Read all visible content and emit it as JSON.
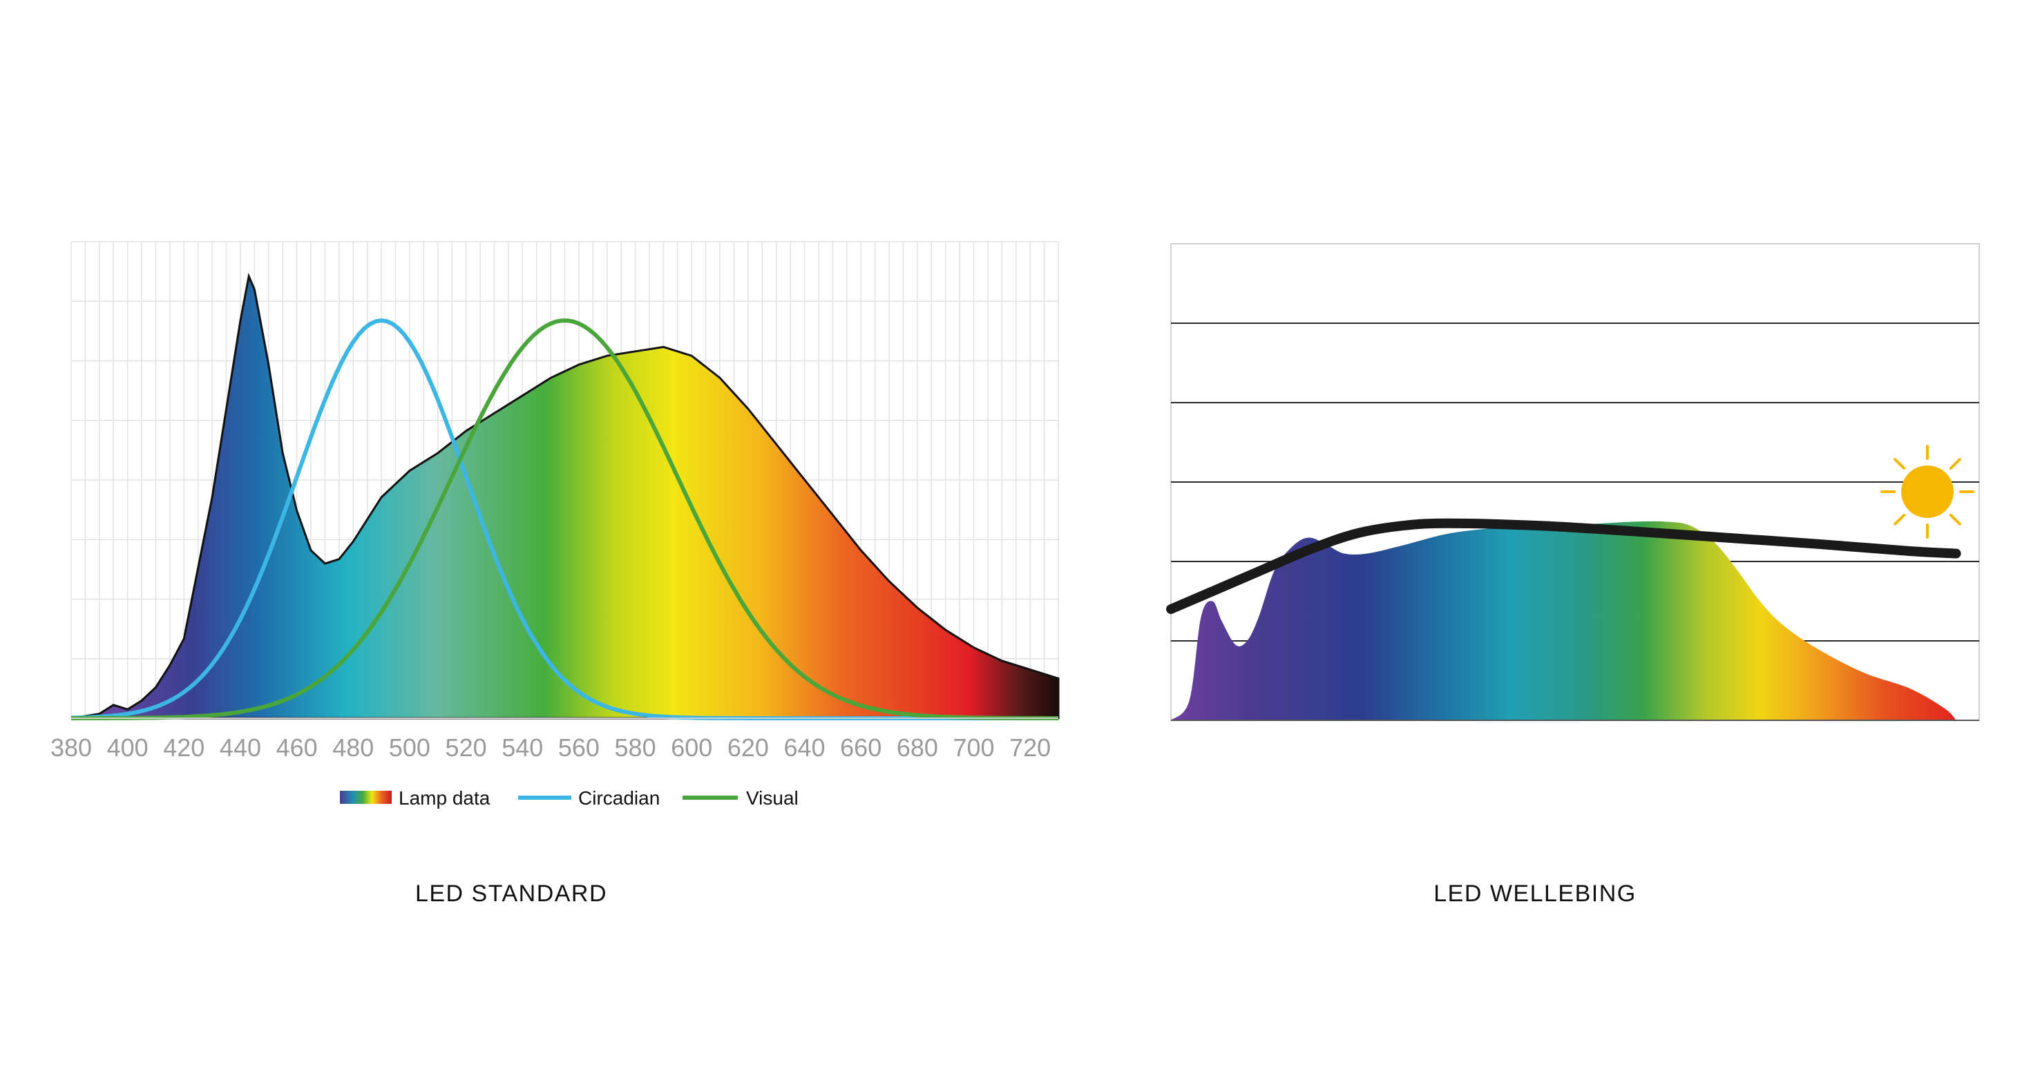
{
  "colors": {
    "circadian": "#3cb6e4",
    "visual": "#4aa63a",
    "outline": "#111111",
    "grid": "#e2e2e2",
    "sun": "#f5b700",
    "daylight_curve": "#1a1a1a"
  },
  "icons": {
    "sun": "sun-icon"
  },
  "chart_data": [
    {
      "type": "area",
      "title": "LED  STANDARD",
      "xlabel": "",
      "ylabel": "",
      "xlim": [
        380,
        730
      ],
      "ylim": [
        0,
        1
      ],
      "grid": true,
      "legend_position": "bottom-center",
      "x_ticks": [
        380,
        400,
        420,
        440,
        460,
        480,
        500,
        520,
        540,
        560,
        580,
        600,
        620,
        640,
        660,
        680,
        700,
        720
      ],
      "legend": [
        "Lamp data",
        "Circadian",
        "Visual"
      ],
      "series": [
        {
          "name": "Lamp data",
          "x": [
            380,
            385,
            390,
            395,
            400,
            405,
            410,
            415,
            420,
            425,
            430,
            435,
            440,
            443,
            445,
            450,
            455,
            460,
            465,
            470,
            475,
            480,
            485,
            490,
            495,
            500,
            510,
            520,
            530,
            540,
            550,
            560,
            570,
            580,
            590,
            600,
            610,
            620,
            630,
            640,
            650,
            660,
            670,
            680,
            690,
            700,
            710,
            720,
            730
          ],
          "values": [
            0,
            0.005,
            0.01,
            0.03,
            0.02,
            0.04,
            0.07,
            0.12,
            0.18,
            0.34,
            0.5,
            0.7,
            0.9,
            1.0,
            0.97,
            0.8,
            0.6,
            0.47,
            0.38,
            0.35,
            0.36,
            0.4,
            0.45,
            0.5,
            0.53,
            0.56,
            0.6,
            0.65,
            0.69,
            0.73,
            0.77,
            0.8,
            0.82,
            0.83,
            0.84,
            0.82,
            0.77,
            0.7,
            0.62,
            0.54,
            0.46,
            0.38,
            0.31,
            0.25,
            0.2,
            0.16,
            0.13,
            0.11,
            0.09
          ]
        },
        {
          "name": "Circadian",
          "peak_nm": 490,
          "width_nm": 30,
          "peak_value": 0.9
        },
        {
          "name": "Visual",
          "peak_nm": 555,
          "width_nm": 40,
          "peak_value": 0.9
        }
      ]
    },
    {
      "type": "area",
      "title": "LED WELLEBING",
      "xlabel": "",
      "ylabel": "",
      "xlim": [
        380,
        730
      ],
      "ylim": [
        0,
        6
      ],
      "grid": true,
      "legend_position": "",
      "series": [
        {
          "name": "",
          "x": [
            380,
            388,
            393,
            398,
            402,
            408,
            413,
            418,
            425,
            433,
            440,
            448,
            455,
            465,
            480,
            500,
            520,
            540,
            560,
            580,
            595,
            605,
            615,
            625,
            635,
            645,
            660,
            680,
            700,
            715,
            720
          ],
          "values": [
            0,
            0.25,
            1.3,
            1.5,
            1.25,
            0.95,
            1.0,
            1.3,
            1.9,
            2.2,
            2.3,
            2.2,
            2.1,
            2.1,
            2.2,
            2.35,
            2.42,
            2.45,
            2.47,
            2.5,
            2.5,
            2.45,
            2.25,
            1.9,
            1.5,
            1.2,
            0.9,
            0.6,
            0.4,
            0.15,
            0
          ]
        },
        {
          "name": "",
          "x": [
            380,
            400,
            420,
            440,
            460,
            480,
            500,
            540,
            580,
            620,
            660,
            700,
            720
          ],
          "values": [
            1.4,
            1.65,
            1.9,
            2.15,
            2.35,
            2.45,
            2.48,
            2.45,
            2.38,
            2.3,
            2.22,
            2.13,
            2.1
          ]
        }
      ]
    }
  ]
}
